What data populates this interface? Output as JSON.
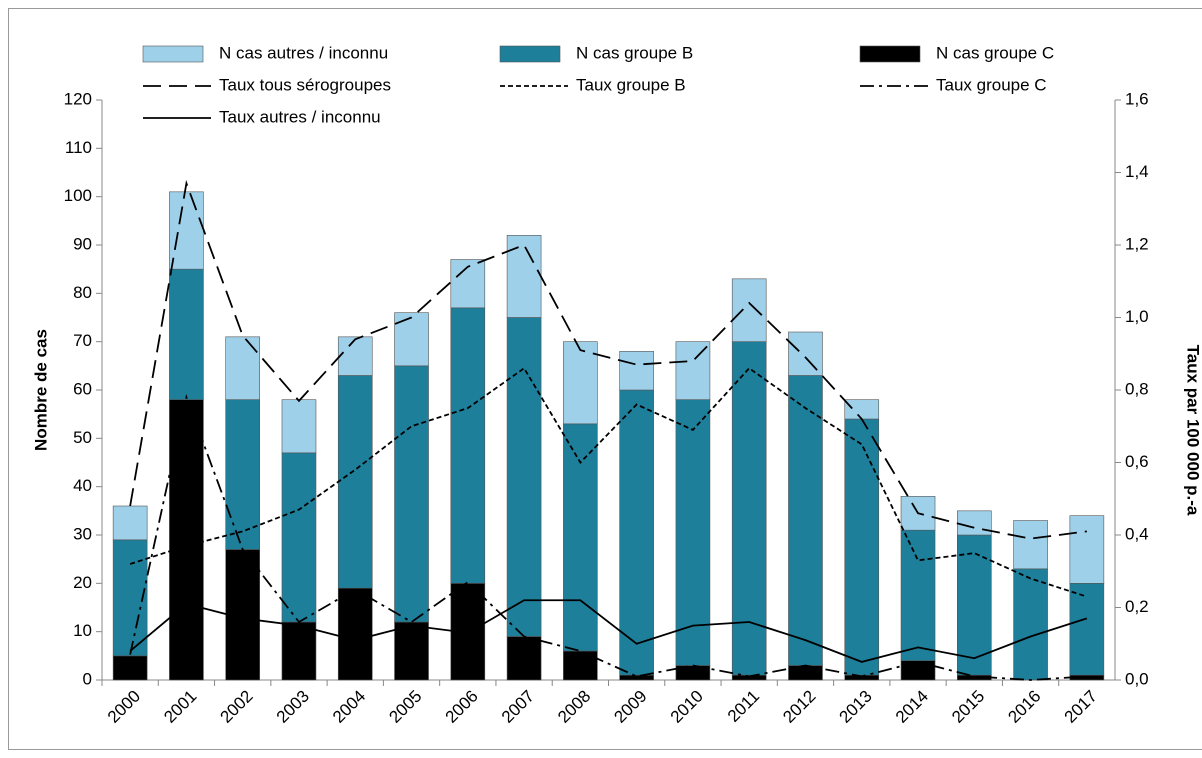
{
  "chart_data": {
    "type": "bar",
    "y_label": "Nombre de cas",
    "y2_label": "Taux  par 100 000 p.-a",
    "categories": [
      "2000",
      "2001",
      "2002",
      "2003",
      "2004",
      "2005",
      "2006",
      "2007",
      "2008",
      "2009",
      "2010",
      "2011",
      "2012",
      "2013",
      "2014",
      "2015",
      "2016",
      "2017"
    ],
    "ylim": [
      0,
      120
    ],
    "yticks": [
      0,
      10,
      20,
      30,
      40,
      50,
      60,
      70,
      80,
      90,
      100,
      110,
      120
    ],
    "y2lim": [
      0,
      1.6
    ],
    "y2ticks": [
      {
        "value": 0,
        "label": "0,0"
      },
      {
        "value": 0.2,
        "label": "0,2"
      },
      {
        "value": 0.4,
        "label": "0,4"
      },
      {
        "value": 0.6,
        "label": "0,6"
      },
      {
        "value": 0.8,
        "label": "0,8"
      },
      {
        "value": 1.0,
        "label": "1,0"
      },
      {
        "value": 1.2,
        "label": "1,2"
      },
      {
        "value": 1.4,
        "label": "1,4"
      },
      {
        "value": 1.6,
        "label": "1,6"
      }
    ],
    "stacked": true,
    "series": [
      {
        "name": "N cas autres / inconnu",
        "color": "#9fd0ea",
        "values": [
          7,
          16,
          13,
          11,
          8,
          11,
          10,
          17,
          17,
          8,
          12,
          13,
          9,
          4,
          7,
          5,
          10,
          14
        ]
      },
      {
        "name": "N cas groupe B",
        "color": "#1e7f9b",
        "values": [
          24,
          27,
          31,
          35,
          44,
          53,
          57,
          66,
          47,
          59,
          55,
          69,
          60,
          53,
          27,
          29,
          23,
          19
        ]
      },
      {
        "name": "N cas groupe C",
        "color": "#000000",
        "values": [
          5,
          58,
          27,
          12,
          19,
          12,
          20,
          9,
          6,
          1,
          3,
          1,
          3,
          1,
          4,
          1,
          0,
          1
        ]
      },
      {
        "name": "Taux tous sérogroupes",
        "color": "#000000",
        "axis": "y2",
        "dash": "long",
        "values": [
          0.48,
          1.37,
          0.95,
          0.77,
          0.94,
          1.0,
          1.14,
          1.2,
          0.91,
          0.87,
          0.88,
          1.04,
          0.89,
          0.72,
          0.46,
          0.42,
          0.39,
          0.41
        ]
      },
      {
        "name": "Taux groupe B",
        "color": "#000000",
        "axis": "y2",
        "dash": "short",
        "values": [
          0.32,
          0.37,
          0.41,
          0.47,
          0.58,
          0.7,
          0.75,
          0.86,
          0.6,
          0.76,
          0.69,
          0.86,
          0.75,
          0.65,
          0.33,
          0.35,
          0.28,
          0.23
        ]
      },
      {
        "name": "Taux groupe C",
        "color": "#000000",
        "axis": "y2",
        "dash": "dashdot",
        "values": [
          0.07,
          0.78,
          0.36,
          0.16,
          0.25,
          0.16,
          0.27,
          0.12,
          0.08,
          0.01,
          0.04,
          0.01,
          0.04,
          0.01,
          0.05,
          0.01,
          0,
          0.01
        ]
      },
      {
        "name": "Taux autres / inconnu",
        "color": "#000000",
        "axis": "y2",
        "dash": "solid",
        "values": [
          0.08,
          0.21,
          0.17,
          0.15,
          0.11,
          0.15,
          0.13,
          0.22,
          0.22,
          0.1,
          0.15,
          0.16,
          0.11,
          0.05,
          0.09,
          0.06,
          0.12,
          0.17
        ]
      }
    ]
  }
}
